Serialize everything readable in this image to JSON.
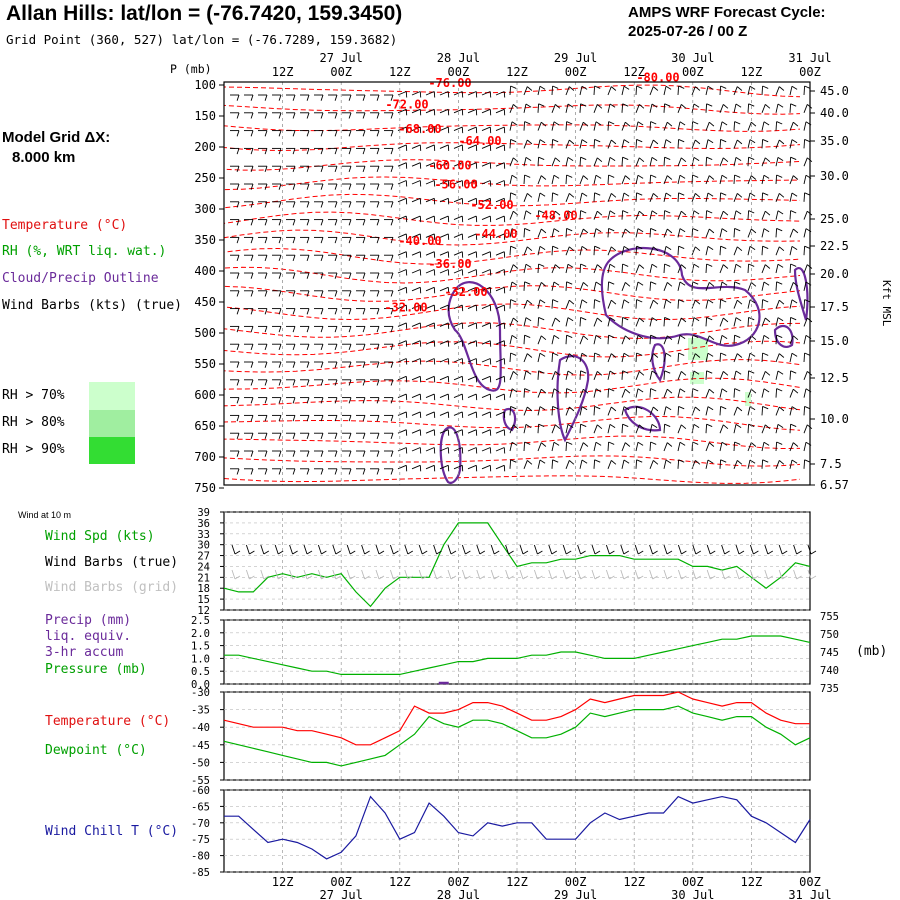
{
  "header": {
    "title": "Allan Hills:  lat/lon = (-76.7420, 159.3450)",
    "subtitle": "Grid Point (360, 527) lat/lon = (-76.7289, 159.3682)",
    "cycle_line1": "AMPS WRF Forecast Cycle:",
    "cycle_line2": "2025-07-26 / 00  Z"
  },
  "grid_note": {
    "line1": "Model Grid ΔX:",
    "line2": "8.000 km"
  },
  "legend": {
    "temperature": "Temperature (°C)",
    "rh": "RH (%, WRT liq. wat.)",
    "cloud": "Cloud/Precip Outline",
    "barbs": "Wind Barbs (kts) (true)",
    "rh70": "RH > 70%",
    "rh80": "RH > 80%",
    "rh90": "RH > 90%"
  },
  "colors": {
    "temperature": "#ff0000",
    "rh": "#00b000",
    "cloud": "#6a2a9a",
    "barbs": "#000000",
    "barbs_grid": "#aaaaaa",
    "wind_speed": "#00b000",
    "pressure": "#00b000",
    "dewpoint": "#00b000",
    "wind_chill": "#1a1aa0",
    "rh70": "#ccffcc",
    "rh80": "#a0eea0",
    "rh90": "#33dd33"
  },
  "time_axis": {
    "hour_labels": [
      "12Z",
      "00Z",
      "12Z",
      "00Z",
      "12Z",
      "00Z",
      "12Z",
      "00Z",
      "12Z",
      "00Z"
    ],
    "date_labels": [
      "27 Jul",
      "28 Jul",
      "29 Jul",
      "30 Jul",
      "31 Jul"
    ]
  },
  "xsection": {
    "p_label": "P (mb)",
    "pressure_levels": [
      "100",
      "150",
      "200",
      "250",
      "300",
      "350",
      "400",
      "450",
      "500",
      "550",
      "600",
      "650",
      "700",
      "750"
    ],
    "right_label": "Kft MSL",
    "height_ticks": [
      {
        "p": 91,
        "label": "45.0"
      },
      {
        "p": 113,
        "label": "40.0"
      },
      {
        "p": 141,
        "label": "35.0"
      },
      {
        "p": 176,
        "label": "30.0"
      },
      {
        "p": 219,
        "label": "25.0"
      },
      {
        "p": 246,
        "label": "22.5"
      },
      {
        "p": 274,
        "label": "20.0"
      },
      {
        "p": 307,
        "label": "17.5"
      },
      {
        "p": 341,
        "label": "15.0"
      },
      {
        "p": 378,
        "label": "12.5"
      },
      {
        "p": 419,
        "label": "10.0"
      },
      {
        "p": 464,
        "label": "7.5"
      },
      {
        "p": 485,
        "label": "6.57"
      }
    ],
    "temp_labels": [
      {
        "x": 450,
        "p": 108,
        "label": "-76.00"
      },
      {
        "x": 658,
        "p": 99,
        "label": "-80.00"
      },
      {
        "x": 407,
        "p": 143,
        "label": "-72.00"
      },
      {
        "x": 420,
        "p": 182,
        "label": "-68.00"
      },
      {
        "x": 480,
        "p": 202,
        "label": "-64.00"
      },
      {
        "x": 450,
        "p": 241,
        "label": "-60.00"
      },
      {
        "x": 456,
        "p": 272,
        "label": "-56.00"
      },
      {
        "x": 492,
        "p": 305,
        "label": "-52.00"
      },
      {
        "x": 556,
        "p": 322,
        "label": "-48.00"
      },
      {
        "x": 496,
        "p": 352,
        "label": "-44.00"
      },
      {
        "x": 420,
        "p": 363,
        "label": "-40.00"
      },
      {
        "x": 450,
        "p": 400,
        "label": "-36.00"
      },
      {
        "x": 466,
        "p": 445,
        "label": "-32.00"
      },
      {
        "x": 406,
        "p": 470,
        "label": "-32.00"
      }
    ]
  },
  "panel_wind": {
    "title": "Wind at 10 m",
    "label_speed": "Wind Spd (kts)",
    "label_barbs": "Wind Barbs (true)",
    "label_barbs_grid": "Wind Barbs (grid)",
    "y_ticks": [
      "39",
      "36",
      "33",
      "30",
      "27",
      "24",
      "21",
      "18",
      "15",
      "12"
    ]
  },
  "panel_precip": {
    "label_precip": "Precip (mm)",
    "label_liq": "liq. equiv.",
    "label_accum": "3-hr accum",
    "label_pressure": "Pressure (mb)",
    "left_ticks": [
      "2.5",
      "2.0",
      "1.5",
      "1.0",
      "0.5",
      "0.0"
    ],
    "right_ticks": [
      "755",
      "750",
      "745",
      "740",
      "735"
    ],
    "right_unit": "(mb)"
  },
  "panel_temp": {
    "label_temp": "Temperature (°C)",
    "label_dew": "Dewpoint (°C)",
    "y_ticks": [
      "-30",
      "-35",
      "-40",
      "-45",
      "-50",
      "-55"
    ]
  },
  "panel_chill": {
    "label": "Wind Chill T (°C)",
    "y_ticks": [
      "-60",
      "-65",
      "-70",
      "-75",
      "-80",
      "-85"
    ]
  },
  "chart_data": [
    {
      "type": "line",
      "series": [
        {
          "name": "Wind Spd (kts)",
          "color": "#00b000",
          "x": [
            0,
            3,
            6,
            9,
            12,
            15,
            18,
            21,
            24,
            27,
            30,
            33,
            36,
            39,
            42,
            45,
            48,
            51,
            54,
            57,
            60,
            63,
            66,
            69,
            72,
            75,
            78,
            81,
            84,
            87,
            90,
            93,
            96,
            99,
            102,
            105,
            108,
            111,
            114,
            117,
            120
          ],
          "values": [
            18,
            17,
            17,
            21,
            22,
            21,
            22,
            21,
            22,
            17,
            13,
            18,
            21,
            21,
            21,
            30,
            36,
            36,
            36,
            30,
            24,
            25,
            25,
            26,
            26,
            27,
            27,
            27,
            26,
            26,
            26,
            26,
            24,
            24,
            23,
            24,
            21,
            18,
            21,
            25,
            24
          ]
        }
      ],
      "ylim": [
        12,
        39
      ]
    },
    {
      "type": "line",
      "series": [
        {
          "name": "Pressure (mb)",
          "color": "#00b000",
          "x": [
            0,
            3,
            6,
            9,
            12,
            15,
            18,
            21,
            24,
            27,
            30,
            33,
            36,
            39,
            42,
            45,
            48,
            51,
            54,
            57,
            60,
            63,
            66,
            69,
            72,
            75,
            78,
            81,
            84,
            87,
            90,
            93,
            96,
            99,
            102,
            105,
            108,
            111,
            114,
            117,
            120
          ],
          "values": [
            744,
            744,
            743,
            742,
            741,
            740,
            739,
            739,
            738,
            738,
            738,
            738,
            738,
            739,
            740,
            741,
            742,
            742,
            743,
            743,
            743,
            744,
            744,
            745,
            745,
            744,
            743,
            743,
            743,
            744,
            745,
            746,
            747,
            748,
            749,
            749,
            750,
            750,
            750,
            749,
            748
          ]
        },
        {
          "name": "Precip (mm)",
          "color": "#6a2a9a",
          "x": [
            45
          ],
          "values": [
            0.05
          ]
        }
      ],
      "ylim": [
        0,
        2.5
      ],
      "y2lim": [
        735,
        755
      ]
    },
    {
      "type": "line",
      "series": [
        {
          "name": "Temperature (°C)",
          "color": "#ff0000",
          "x": [
            0,
            3,
            6,
            9,
            12,
            15,
            18,
            21,
            24,
            27,
            30,
            33,
            36,
            39,
            42,
            45,
            48,
            51,
            54,
            57,
            60,
            63,
            66,
            69,
            72,
            75,
            78,
            81,
            84,
            87,
            90,
            93,
            96,
            99,
            102,
            105,
            108,
            111,
            114,
            117,
            120
          ],
          "values": [
            -38,
            -39,
            -40,
            -40,
            -40,
            -41,
            -41,
            -42,
            -43,
            -45,
            -45,
            -43,
            -41,
            -34,
            -36,
            -36,
            -35,
            -33,
            -33,
            -34,
            -36,
            -38,
            -38,
            -37,
            -35,
            -32,
            -33,
            -32,
            -31,
            -31,
            -31,
            -30,
            -32,
            -33,
            -34,
            -33,
            -33,
            -36,
            -38,
            -39,
            -39
          ]
        },
        {
          "name": "Dewpoint (°C)",
          "color": "#00b000",
          "x": [
            0,
            3,
            6,
            9,
            12,
            15,
            18,
            21,
            24,
            27,
            30,
            33,
            36,
            39,
            42,
            45,
            48,
            51,
            54,
            57,
            60,
            63,
            66,
            69,
            72,
            75,
            78,
            81,
            84,
            87,
            90,
            93,
            96,
            99,
            102,
            105,
            108,
            111,
            114,
            117,
            120
          ],
          "values": [
            -44,
            -45,
            -46,
            -47,
            -48,
            -49,
            -50,
            -50,
            -51,
            -50,
            -49,
            -48,
            -45,
            -42,
            -37,
            -39,
            -40,
            -38,
            -38,
            -39,
            -41,
            -43,
            -43,
            -42,
            -40,
            -36,
            -37,
            -36,
            -35,
            -35,
            -35,
            -34,
            -36,
            -37,
            -38,
            -37,
            -37,
            -40,
            -42,
            -45,
            -43
          ]
        }
      ],
      "ylim": [
        -55,
        -30
      ]
    },
    {
      "type": "line",
      "series": [
        {
          "name": "Wind Chill T (°C)",
          "color": "#1a1aa0",
          "x": [
            0,
            3,
            6,
            9,
            12,
            15,
            18,
            21,
            24,
            27,
            30,
            33,
            36,
            39,
            42,
            45,
            48,
            51,
            54,
            57,
            60,
            63,
            66,
            69,
            72,
            75,
            78,
            81,
            84,
            87,
            90,
            93,
            96,
            99,
            102,
            105,
            108,
            111,
            114,
            117,
            120
          ],
          "values": [
            -68,
            -68,
            -72,
            -76,
            -75,
            -76,
            -78,
            -81,
            -79,
            -74,
            -62,
            -67,
            -75,
            -73,
            -64,
            -68,
            -73,
            -74,
            -70,
            -71,
            -70,
            -70,
            -75,
            -75,
            -75,
            -70,
            -67,
            -69,
            -68,
            -67,
            -67,
            -62,
            -64,
            -63,
            -62,
            -63,
            -68,
            -70,
            -73,
            -76,
            -69
          ]
        }
      ],
      "ylim": [
        -85,
        -60
      ]
    }
  ]
}
